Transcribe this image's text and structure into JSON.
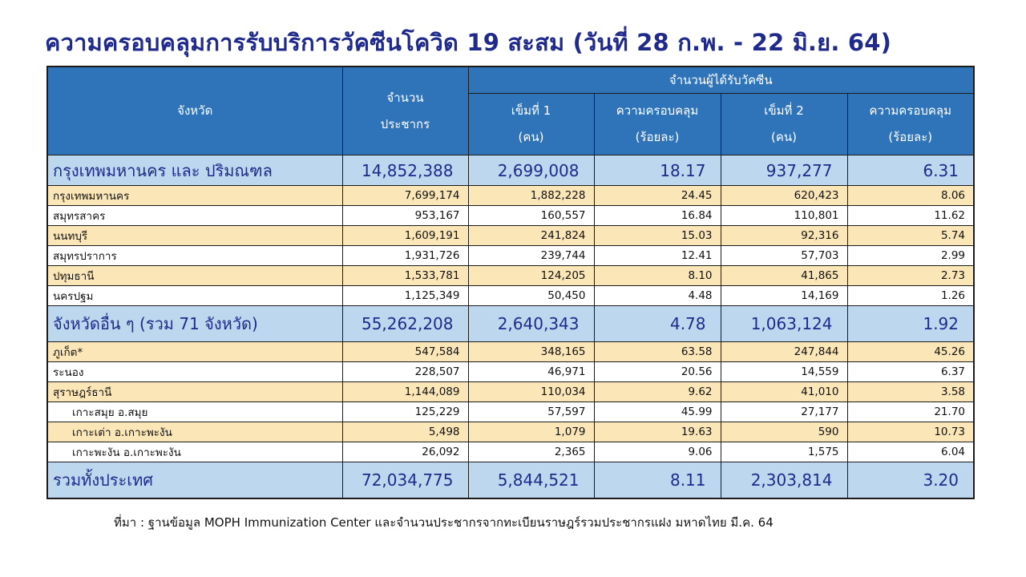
{
  "title": "ความครอบคลุมการรับบริการวัคซีนโควิด 19 สะสม (วันที่ 28 ก.พ. - 22 มิ.ย. 64)",
  "header": {
    "province": "จังหวัด",
    "population_l1": "จำนวน",
    "population_l2": "ประชากร",
    "vaccinated_group": "จำนวนผู้ได้รับวัคซีน",
    "dose1_l1": "เข็มที่ 1",
    "dose1_l2": "(คน)",
    "coverage1_l1": "ความครอบคลุม",
    "coverage1_l2": "(ร้อยละ)",
    "dose2_l1": "เข็มที่ 2",
    "dose2_l2": "(คน)",
    "coverage2_l1": "ความครอบคลุม",
    "coverage2_l2": "(ร้อยละ)"
  },
  "rows": [
    {
      "name": "กรุงเทพมหานคร และ ปริมณฑล",
      "population": "14,852,388",
      "dose1": "2,699,008",
      "cov1": "18.17",
      "dose2": "937,277",
      "cov2": "6.31"
    },
    {
      "name": "กรุงเทพมหานคร",
      "population": "7,699,174",
      "dose1": "1,882,228",
      "cov1": "24.45",
      "dose2": "620,423",
      "cov2": "8.06"
    },
    {
      "name": "สมุทรสาคร",
      "population": "953,167",
      "dose1": "160,557",
      "cov1": "16.84",
      "dose2": "110,801",
      "cov2": "11.62"
    },
    {
      "name": "นนทบุรี",
      "population": "1,609,191",
      "dose1": "241,824",
      "cov1": "15.03",
      "dose2": "92,316",
      "cov2": "5.74"
    },
    {
      "name": "สมุทรปราการ",
      "population": "1,931,726",
      "dose1": "239,744",
      "cov1": "12.41",
      "dose2": "57,703",
      "cov2": "2.99"
    },
    {
      "name": "ปทุมธานี",
      "population": "1,533,781",
      "dose1": "124,205",
      "cov1": "8.10",
      "dose2": "41,865",
      "cov2": "2.73"
    },
    {
      "name": "นครปฐม",
      "population": "1,125,349",
      "dose1": "50,450",
      "cov1": "4.48",
      "dose2": "14,169",
      "cov2": "1.26"
    },
    {
      "name": "จังหวัดอื่น ๆ (รวม 71 จังหวัด)",
      "population": "55,262,208",
      "dose1": "2,640,343",
      "cov1": "4.78",
      "dose2": "1,063,124",
      "cov2": "1.92"
    },
    {
      "name": "ภูเก็ต*",
      "population": "547,584",
      "dose1": "348,165",
      "cov1": "63.58",
      "dose2": "247,844",
      "cov2": "45.26"
    },
    {
      "name": "ระนอง",
      "population": "228,507",
      "dose1": "46,971",
      "cov1": "20.56",
      "dose2": "14,559",
      "cov2": "6.37"
    },
    {
      "name": "สุราษฎร์ธานี",
      "population": "1,144,089",
      "dose1": "110,034",
      "cov1": "9.62",
      "dose2": "41,010",
      "cov2": "3.58"
    },
    {
      "name": "เกาะสมุย อ.สมุย",
      "population": "125,229",
      "dose1": "57,597",
      "cov1": "45.99",
      "dose2": "27,177",
      "cov2": "21.70"
    },
    {
      "name": "เกาะเต่า อ.เกาะพะงัน",
      "population": "5,498",
      "dose1": "1,079",
      "cov1": "19.63",
      "dose2": "590",
      "cov2": "10.73"
    },
    {
      "name": "เกาะพะงัน อ.เกาะพะงัน",
      "population": "26,092",
      "dose1": "2,365",
      "cov1": "9.06",
      "dose2": "1,575",
      "cov2": "6.04"
    },
    {
      "name": "รวมทั้งประเทศ",
      "population": "72,034,775",
      "dose1": "5,844,521",
      "cov1": "8.11",
      "dose2": "2,303,814",
      "cov2": "3.20"
    }
  ],
  "source": "ที่มา : ฐานข้อมูล MOPH  Immunization Center  และจำนวนประชากรจากทะเบียนราษฎร์รวมประชากรแฝง มหาดไทย มี.ค. 64",
  "colors": {
    "title": "#1f2a8a",
    "header_bg": "#2f73b8",
    "total_row_bg": "#bdd7ee",
    "highlight_row_bg": "#fbe6b8"
  }
}
